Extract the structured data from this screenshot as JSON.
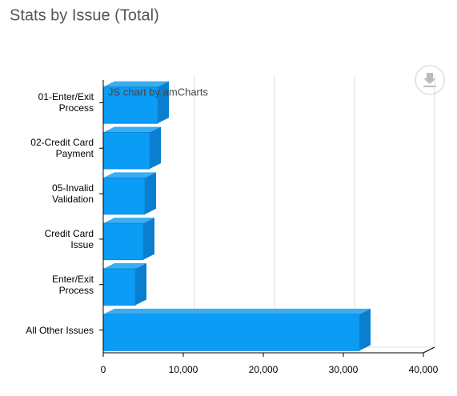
{
  "chart_data": {
    "type": "bar3d",
    "title": "Stats by Issue (Total)",
    "credit": "JS chart by amCharts",
    "categories": [
      "01-Enter/Exit\nProcess",
      "02-Credit Card\nPayment",
      "05-Invalid\nValidation",
      "Credit Card\nIssue",
      "Enter/Exit\nProcess",
      "All Other Issues"
    ],
    "values": [
      6800,
      5800,
      5200,
      5000,
      4000,
      32000
    ],
    "color": "#0b9cf5",
    "xlim": [
      0,
      40000
    ],
    "xticks": [
      0,
      {
        "value": 10000,
        "label": "10,000"
      },
      {
        "value": 20000,
        "label": "20,000"
      },
      {
        "value": 30000,
        "label": "30,000"
      },
      {
        "value": 40000,
        "label": "40,000"
      }
    ],
    "grid": true
  }
}
